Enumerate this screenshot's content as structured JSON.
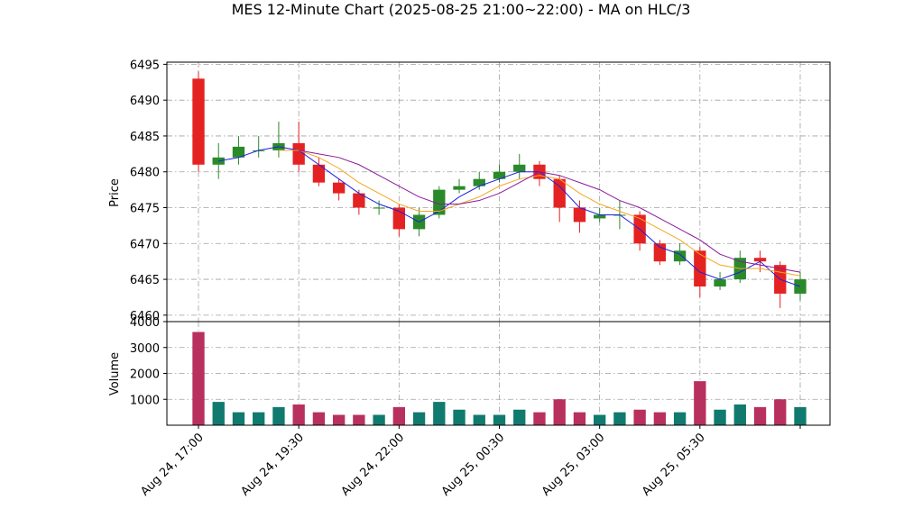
{
  "chart_data": {
    "type": "candlestick",
    "title": "MES 12-Minute Chart (2025-08-25 21:00~22:00) - MA on HLC/3",
    "ylabel": "Price",
    "volume_ylabel": "Volume",
    "categories": [
      "Aug 24, 17:00",
      null,
      null,
      null,
      null,
      "Aug 24, 19:30",
      null,
      null,
      null,
      null,
      "Aug 24, 22:00",
      null,
      null,
      null,
      null,
      "Aug 25, 00:30",
      null,
      null,
      null,
      null,
      "Aug 25, 03:00",
      null,
      null,
      null,
      null,
      "Aug 25, 05:30",
      null,
      null,
      null,
      null,
      null
    ],
    "open": [
      6493,
      6481,
      6482,
      6483,
      6483,
      6484,
      6481,
      6478.5,
      6477,
      6475,
      6475,
      6472,
      6474,
      6477.5,
      6478,
      6479,
      6480,
      6481,
      6479,
      6475,
      6473.5,
      6474,
      6474,
      6470,
      6467.5,
      6469,
      6464,
      6465,
      6468,
      6467,
      6463
    ],
    "high": [
      6494,
      6484,
      6485,
      6485,
      6487,
      6487,
      6482,
      6479,
      6477.5,
      6476,
      6475.5,
      6475,
      6478,
      6479,
      6480,
      6481,
      6482.5,
      6481.5,
      6479.5,
      6476,
      6475,
      6476,
      6474.5,
      6470.5,
      6470,
      6469.5,
      6466,
      6469,
      6469,
      6467.5,
      6466
    ],
    "low": [
      6480,
      6479,
      6481,
      6482,
      6482,
      6480,
      6478,
      6476,
      6474,
      6474,
      6471,
      6471,
      6473.5,
      6477,
      6477.5,
      6478.5,
      6479,
      6478,
      6473,
      6471.5,
      6473,
      6472,
      6469,
      6467,
      6467,
      6462.5,
      6463.5,
      6464.5,
      6466,
      6461,
      6462
    ],
    "close": [
      6481,
      6482,
      6483.5,
      6483,
      6484,
      6481,
      6478.5,
      6477,
      6475,
      6475,
      6472,
      6474,
      6477.5,
      6478,
      6479,
      6480,
      6481,
      6479,
      6475,
      6473,
      6474,
      6474,
      6470,
      6467.5,
      6469,
      6464,
      6465,
      6468,
      6467.5,
      6463,
      6465
    ],
    "volume": [
      3600,
      900,
      500,
      500,
      700,
      800,
      500,
      400,
      400,
      400,
      700,
      500,
      900,
      600,
      400,
      400,
      600,
      500,
      1000,
      500,
      400,
      500,
      600,
      500,
      500,
      1700,
      600,
      800,
      700,
      1000,
      700
    ],
    "up_color": "#2a8a2a",
    "down_color": "#e52222",
    "volume_up_color": "#107a6e",
    "volume_down_color": "#b8305e",
    "series": [
      {
        "color": "#1f1fe0",
        "values": [
          null,
          6481.5,
          6482,
          6483,
          6483.5,
          6483,
          6481,
          6479,
          6477,
          6475.5,
          6474.5,
          6473,
          6474.5,
          6476.5,
          6478,
          6479,
          6480,
          6480,
          6478,
          6475,
          6474,
          6474,
          6472,
          6469.5,
          6468.5,
          6466,
          6465,
          6466,
          6467.5,
          6465,
          6464
        ]
      },
      {
        "color": "#f5a623",
        "values": [
          null,
          null,
          null,
          null,
          6483,
          6483,
          6482,
          6480.5,
          6478.5,
          6477,
          6475.5,
          6474.5,
          6474.5,
          6475.5,
          6476.5,
          6478,
          6479,
          6479.5,
          6479,
          6477,
          6475.5,
          6474.5,
          6473.5,
          6472,
          6470.5,
          6468.5,
          6467,
          6466.5,
          6466.5,
          6466,
          6465.5
        ]
      },
      {
        "color": "#8b1a9b",
        "values": [
          null,
          null,
          null,
          null,
          null,
          6483,
          6482.5,
          6482,
          6481,
          6479.5,
          6478,
          6476.5,
          6475.5,
          6475.5,
          6476,
          6477,
          6478.5,
          6480,
          6479.5,
          6478.5,
          6477.5,
          6476,
          6475,
          6473.5,
          6472,
          6470.5,
          6468.5,
          6467.5,
          6467,
          6466.5,
          6466
        ]
      }
    ],
    "ylim": [
      6459.1,
      6495.3
    ],
    "yticks": [
      6460,
      6465,
      6470,
      6475,
      6480,
      6485,
      6490,
      6495
    ],
    "volume_ylim": [
      0,
      4000
    ],
    "volume_yticks": [
      1000,
      2000,
      3000,
      4000
    ],
    "grid": true
  }
}
